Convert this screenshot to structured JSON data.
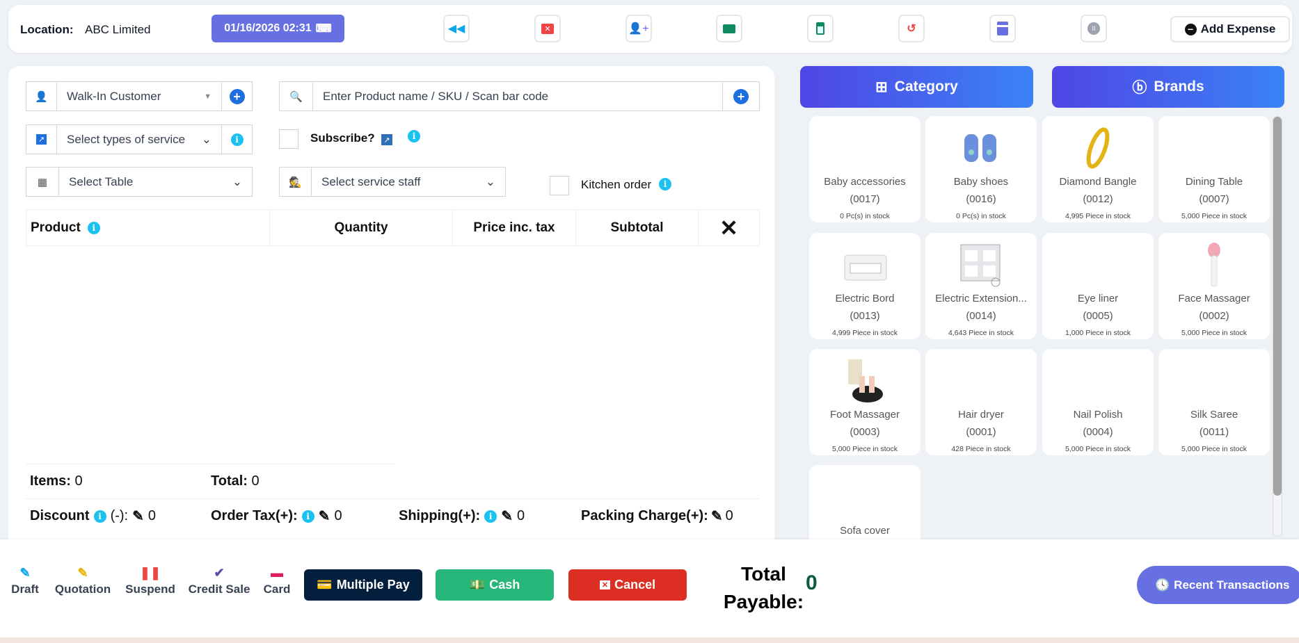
{
  "topbar": {
    "location_label": "Location:",
    "location_value": "ABC Limited",
    "datetime": "01/16/2026 02:31",
    "add_expense": "Add Expense",
    "icons": [
      "backward-icon",
      "close-window-icon",
      "add-user-icon",
      "briefcase-icon",
      "calculator-icon",
      "undo-icon",
      "card-reader-icon",
      "pause-icon"
    ]
  },
  "form": {
    "customer": "Walk-In Customer",
    "search_placeholder": "Enter Product name / SKU / Scan bar code",
    "service_type": "Select types of service",
    "subscribe": "Subscribe?",
    "table": "Select Table",
    "staff": "Select service staff",
    "kitchen": "Kitchen order"
  },
  "table": {
    "headers": [
      "Product",
      "Quantity",
      "Price inc. tax",
      "Subtotal"
    ],
    "close": "✕"
  },
  "summary": {
    "items_label": "Items:",
    "items": "0",
    "total_label": "Total:",
    "total": "0",
    "discount_label": "Discount",
    "discount_sign": "(-):",
    "discount": "0",
    "tax_label": "Order Tax(+):",
    "tax": "0",
    "shipping_label": "Shipping(+):",
    "shipping": "0",
    "packing_label": "Packing Charge(+):",
    "packing": "0"
  },
  "filters": {
    "category": "Category",
    "brands": "Brands"
  },
  "products": [
    {
      "name": "Baby accessories",
      "sku": "(0017)",
      "stock": "0 Pc(s) in stock",
      "img": ""
    },
    {
      "name": "Baby shoes",
      "sku": "(0016)",
      "stock": "0 Pc(s) in stock",
      "img": "shoes"
    },
    {
      "name": "Diamond Bangle",
      "sku": "(0012)",
      "stock": "4,995 Piece in stock",
      "img": "bangle"
    },
    {
      "name": "Dining Table",
      "sku": "(0007)",
      "stock": "5,000 Piece in stock",
      "img": ""
    },
    {
      "name": "Electric Bord",
      "sku": "(0013)",
      "stock": "4,999 Piece in stock",
      "img": "board"
    },
    {
      "name": "Electric Extension...",
      "sku": "(0014)",
      "stock": "4,643 Piece in stock",
      "img": "extension"
    },
    {
      "name": "Eye liner",
      "sku": "(0005)",
      "stock": "1,000 Piece in stock",
      "img": ""
    },
    {
      "name": "Face Massager",
      "sku": "(0002)",
      "stock": "5,000 Piece in stock",
      "img": "massager"
    },
    {
      "name": "Foot Massager",
      "sku": "(0003)",
      "stock": "5,000 Piece in stock",
      "img": "foot"
    },
    {
      "name": "Hair dryer",
      "sku": "(0001)",
      "stock": "428 Piece in stock",
      "img": ""
    },
    {
      "name": "Nail Polish",
      "sku": "(0004)",
      "stock": "5,000 Piece in stock",
      "img": ""
    },
    {
      "name": "Silk Saree",
      "sku": "(0011)",
      "stock": "5,000 Piece in stock",
      "img": ""
    },
    {
      "name": "Sofa cover",
      "sku": "",
      "stock": "",
      "img": ""
    }
  ],
  "footer": {
    "draft": "Draft",
    "quotation": "Quotation",
    "suspend": "Suspend",
    "credit_sale": "Credit Sale",
    "card": "Card",
    "multiple_pay": "Multiple Pay",
    "cash": "Cash",
    "cancel": "Cancel",
    "total_payable_1": "Total",
    "total_payable_2": "Payable:",
    "total_payable": "0",
    "recent": "Recent Transactions"
  },
  "colors": {
    "accent": "#6670e3",
    "cash": "#28b77a",
    "cancel": "#dc2e22",
    "multiple_pay": "#021f3d",
    "total": "#0b5d3a"
  }
}
